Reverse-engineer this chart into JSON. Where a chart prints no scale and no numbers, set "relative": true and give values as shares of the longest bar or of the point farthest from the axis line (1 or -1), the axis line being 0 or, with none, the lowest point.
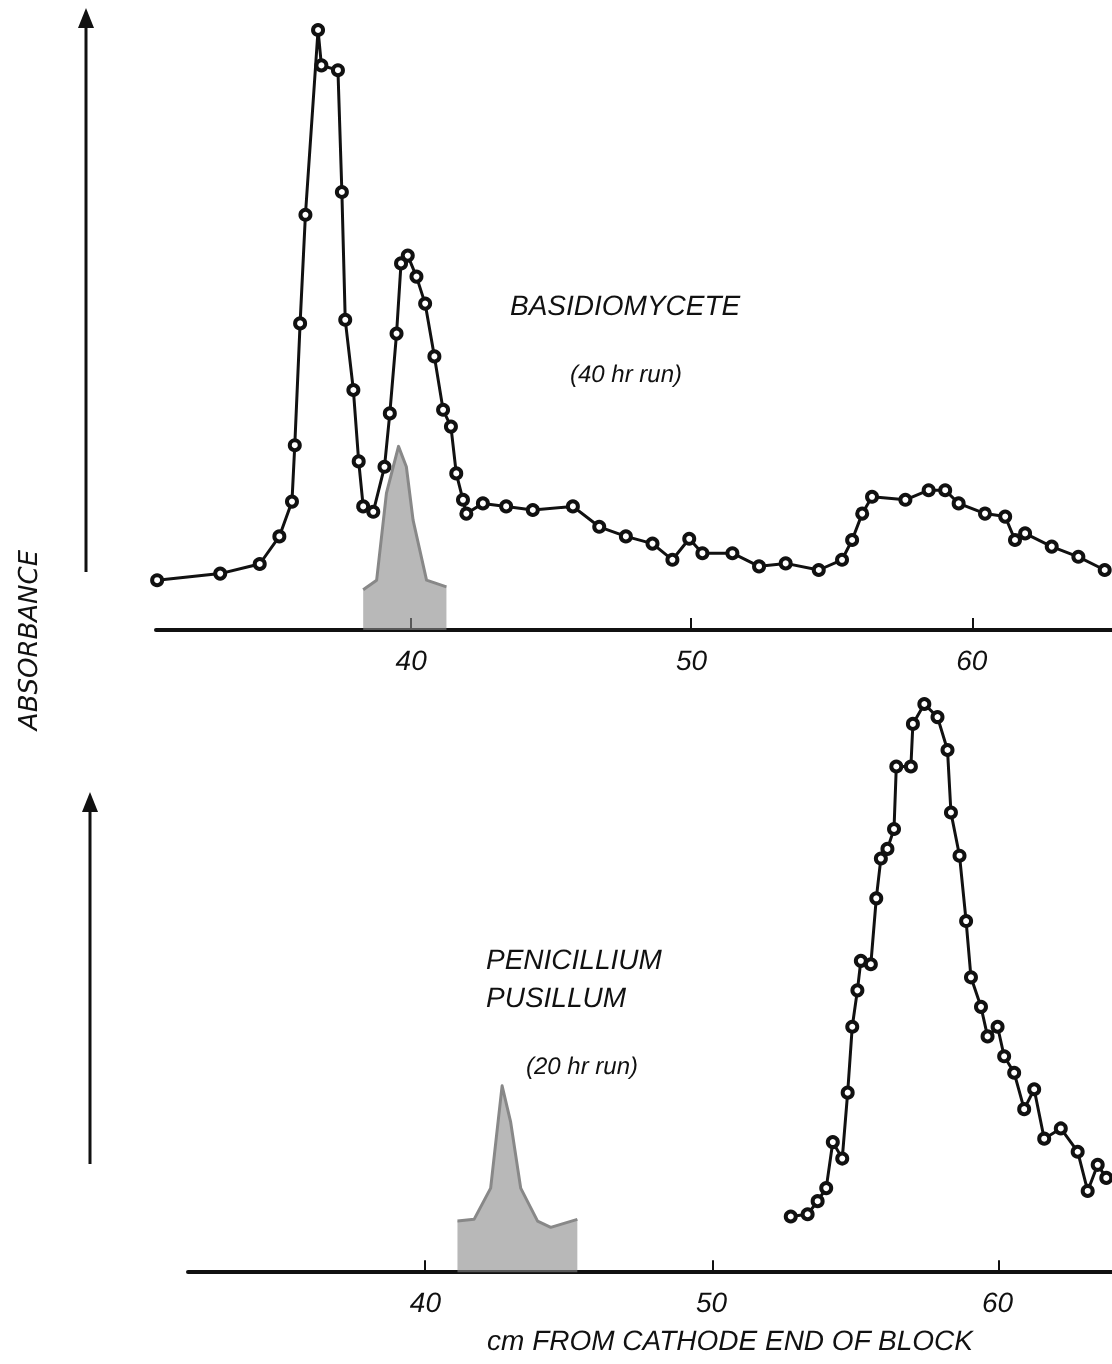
{
  "chart_data": [
    {
      "type": "line",
      "title": "BASIDIOMYCETE",
      "subtitle": "(40 hr run)",
      "ylabel": "ABSORBANCE",
      "relative": true,
      "xlim": [
        30.9,
        65
      ],
      "xticks": [
        40,
        50,
        60
      ],
      "grid": false,
      "marker": "circle",
      "line_style": "solid",
      "series": [
        {
          "color": "#111111",
          "x": [
            30.94,
            33.19,
            34.6,
            35.3,
            35.75,
            35.85,
            36.04,
            36.23,
            36.68,
            36.8,
            37.39,
            37.53,
            37.65,
            37.94,
            38.13,
            38.29,
            38.65,
            39.05,
            39.24,
            39.48,
            39.64,
            39.88,
            40.19,
            40.5,
            40.83,
            41.14,
            41.42,
            41.61,
            41.85,
            41.97,
            42.56,
            43.39,
            44.34,
            45.77,
            46.71,
            47.66,
            48.61,
            49.32,
            49.92,
            50.39,
            51.46,
            52.41,
            53.36,
            54.54,
            55.37,
            55.73,
            56.09,
            56.44,
            57.63,
            58.46,
            59.05,
            59.53,
            60.47,
            61.19,
            61.54,
            61.9,
            62.85,
            63.8,
            64.74
          ],
          "values": [
            0.083,
            0.094,
            0.11,
            0.156,
            0.214,
            0.308,
            0.511,
            0.692,
            1.0,
            0.941,
            0.933,
            0.73,
            0.517,
            0.4,
            0.281,
            0.206,
            0.197,
            0.272,
            0.361,
            0.494,
            0.611,
            0.624,
            0.589,
            0.544,
            0.456,
            0.367,
            0.339,
            0.261,
            0.217,
            0.194,
            0.211,
            0.206,
            0.2,
            0.206,
            0.172,
            0.156,
            0.144,
            0.117,
            0.152,
            0.128,
            0.128,
            0.106,
            0.111,
            0.1,
            0.117,
            0.15,
            0.194,
            0.222,
            0.217,
            0.233,
            0.233,
            0.211,
            0.194,
            0.189,
            0.15,
            0.161,
            0.139,
            0.122,
            0.1
          ]
        },
        {
          "type": "area",
          "marker": "none",
          "color": "#888888",
          "x": [
            38.29,
            38.77,
            39.12,
            39.55,
            39.83,
            40.07,
            40.55,
            41.26
          ],
          "values": [
            0.067,
            0.083,
            0.228,
            0.306,
            0.272,
            0.183,
            0.083,
            0.072
          ]
        }
      ]
    },
    {
      "type": "line",
      "title": "PENICILLIUM PUSILLUM",
      "subtitle": "(20 hr run)",
      "xlabel": "cm FROM CATHODE END OF BLOCK",
      "relative": true,
      "xlim": [
        31.7,
        64
      ],
      "xticks": [
        40,
        50,
        60
      ],
      "grid": false,
      "marker": "circle",
      "line_style": "solid",
      "series": [
        {
          "color": "#111111",
          "x": [
            52.77,
            53.36,
            53.71,
            54.01,
            54.24,
            54.57,
            54.76,
            54.92,
            55.1,
            55.22,
            55.57,
            55.76,
            55.92,
            56.15,
            56.38,
            56.46,
            56.97,
            57.04,
            57.44,
            57.9,
            58.25,
            58.37,
            58.67,
            58.9,
            59.07,
            59.42,
            59.65,
            60,
            60.23,
            60.58,
            60.93,
            61.28,
            61.63,
            62.21,
            62.8,
            63.15,
            63.5,
            63.8
          ],
          "values": [
            0.098,
            0.102,
            0.125,
            0.148,
            0.229,
            0.2,
            0.316,
            0.432,
            0.496,
            0.548,
            0.542,
            0.658,
            0.728,
            0.745,
            0.78,
            0.89,
            0.89,
            0.965,
            1.0,
            0.977,
            0.919,
            0.809,
            0.733,
            0.618,
            0.519,
            0.467,
            0.415,
            0.432,
            0.38,
            0.351,
            0.287,
            0.322,
            0.235,
            0.253,
            0.212,
            0.143,
            0.189,
            0.166
          ]
        },
        {
          "type": "area",
          "marker": "none",
          "color": "#888888",
          "x": [
            41.12,
            41.7,
            42.28,
            42.68,
            42.98,
            43.33,
            43.92,
            44.38,
            45.31
          ],
          "values": [
            0.09,
            0.093,
            0.148,
            0.328,
            0.264,
            0.148,
            0.09,
            0.079,
            0.093
          ]
        }
      ]
    }
  ]
}
